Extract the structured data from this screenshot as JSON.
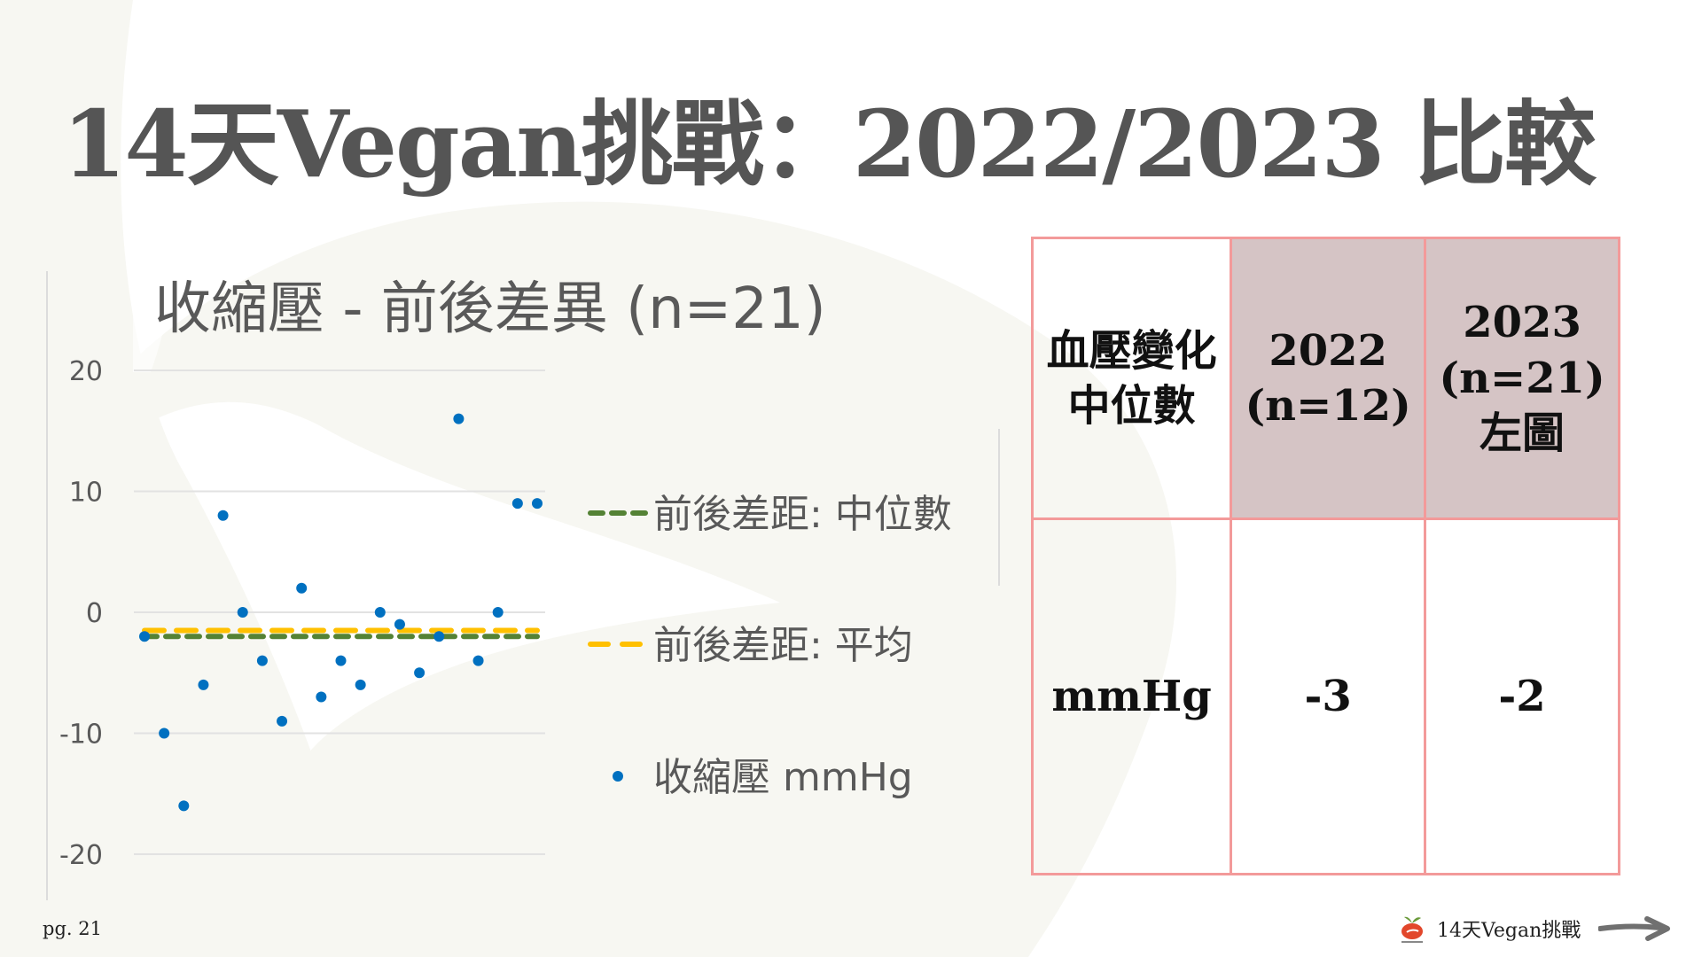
{
  "slide": {
    "title": "14天Vegan挑戰：2022/2023 比較",
    "page_number": "pg. 21",
    "footer_brand": "14天Vegan挑戰"
  },
  "chart_data": {
    "type": "scatter",
    "title": "收縮壓 - 前後差異 (n=21)",
    "xlabel": "",
    "ylabel": "",
    "ylim": [
      -20,
      20
    ],
    "yticks": [
      "20",
      "10",
      "0",
      "-10",
      "-20"
    ],
    "ytick_values": [
      20,
      10,
      0,
      -10,
      -20
    ],
    "grid": true,
    "legend_placement": "right",
    "x": [
      1,
      2,
      3,
      4,
      5,
      6,
      7,
      8,
      9,
      10,
      11,
      12,
      13,
      14,
      15,
      16,
      17,
      18,
      19,
      20,
      21
    ],
    "series": [
      {
        "name": "收縮壓 mmHg",
        "kind": "scatter",
        "color": "#0070c0",
        "values": [
          -2,
          -10,
          -16,
          -6,
          8,
          0,
          -4,
          -9,
          2,
          -7,
          -4,
          -6,
          0,
          -1,
          -5,
          -2,
          16,
          -4,
          0,
          9,
          9
        ]
      },
      {
        "name": "前後差距: 中位數",
        "kind": "line-dashed",
        "color": "#548235",
        "value": -2
      },
      {
        "name": "前後差距: 平均",
        "kind": "line-dashed",
        "color": "#ffc000",
        "value": -1.5
      }
    ]
  },
  "table": {
    "header": {
      "col0": [
        "血壓變化",
        "中位數"
      ],
      "col1": [
        "2022",
        "(n=12)"
      ],
      "col2": [
        "2023",
        "(n=21)",
        "左圖"
      ]
    },
    "row": {
      "label": "mmHg",
      "v2022": "-3",
      "v2023": "-2"
    },
    "border_color": "#f39a9a",
    "header_highlight_color": "#d5c4c5"
  }
}
